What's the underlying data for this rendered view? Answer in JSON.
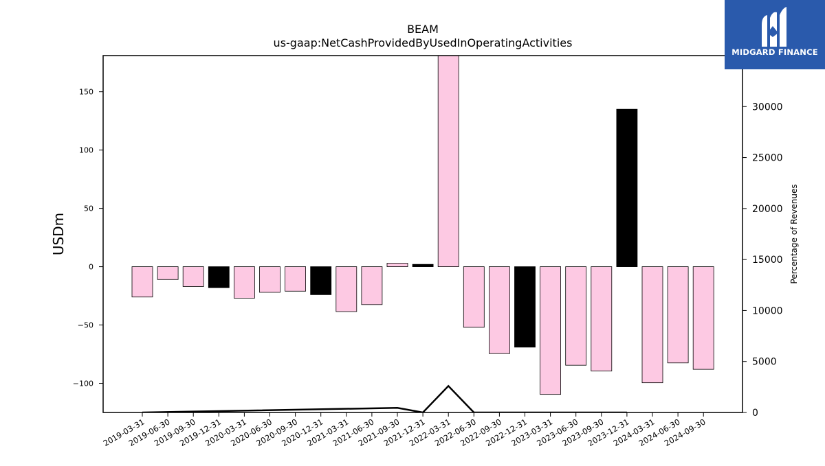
{
  "chart_data": {
    "type": "bar",
    "title": "BEAM",
    "subtitle": "us-gaap:NetCashProvidedByUsedInOperatingActivities",
    "ylabel": "USDm",
    "y2label": "Percentage of Revenues",
    "ylim": [
      -125,
      181
    ],
    "y2lim": [
      0,
      35000
    ],
    "yticks": [
      -100,
      -50,
      0,
      50,
      100,
      150
    ],
    "y2ticks": [
      0,
      5000,
      10000,
      15000,
      20000,
      25000,
      30000
    ],
    "categories": [
      "2019-03-31",
      "2019-06-30",
      "2019-09-30",
      "2019-12-31",
      "2020-03-31",
      "2020-06-30",
      "2020-09-30",
      "2020-12-31",
      "2021-03-31",
      "2021-06-30",
      "2021-09-30",
      "2021-12-31",
      "2022-03-31",
      "2022-06-30",
      "2022-09-30",
      "2022-12-31",
      "2023-03-31",
      "2023-06-30",
      "2023-09-30",
      "2023-12-31",
      "2024-03-31",
      "2024-06-30",
      "2024-09-30"
    ],
    "values": [
      -26,
      -11,
      -17,
      -18,
      -27,
      -22,
      -21,
      -24,
      -38.5,
      -32.5,
      3,
      2,
      185,
      -52,
      -74.5,
      -69,
      -109.5,
      -84.5,
      -89.5,
      135,
      -99.5,
      -82.5,
      -88
    ],
    "highlight": [
      false,
      false,
      false,
      true,
      false,
      false,
      false,
      true,
      false,
      false,
      false,
      true,
      false,
      false,
      false,
      true,
      false,
      false,
      false,
      true,
      false,
      false,
      false
    ],
    "series2": [
      {
        "x": "2019-03-31",
        "y": 0
      },
      {
        "x": "2021-09-30",
        "y": 450
      },
      {
        "x": "2021-12-31",
        "y": 0
      },
      {
        "x": "2022-03-31",
        "y": 2600
      },
      {
        "x": "2022-06-30",
        "y": 0
      },
      {
        "x": "2023-12-31",
        "y": 0
      }
    ],
    "colors": {
      "bar": "#fdc9e3",
      "highlight": "#000000",
      "line": "#000000",
      "edge": "#000000"
    },
    "grid": false
  },
  "logo": {
    "text": "MIDGARD FINANCE",
    "bg": "#2a5aac"
  }
}
